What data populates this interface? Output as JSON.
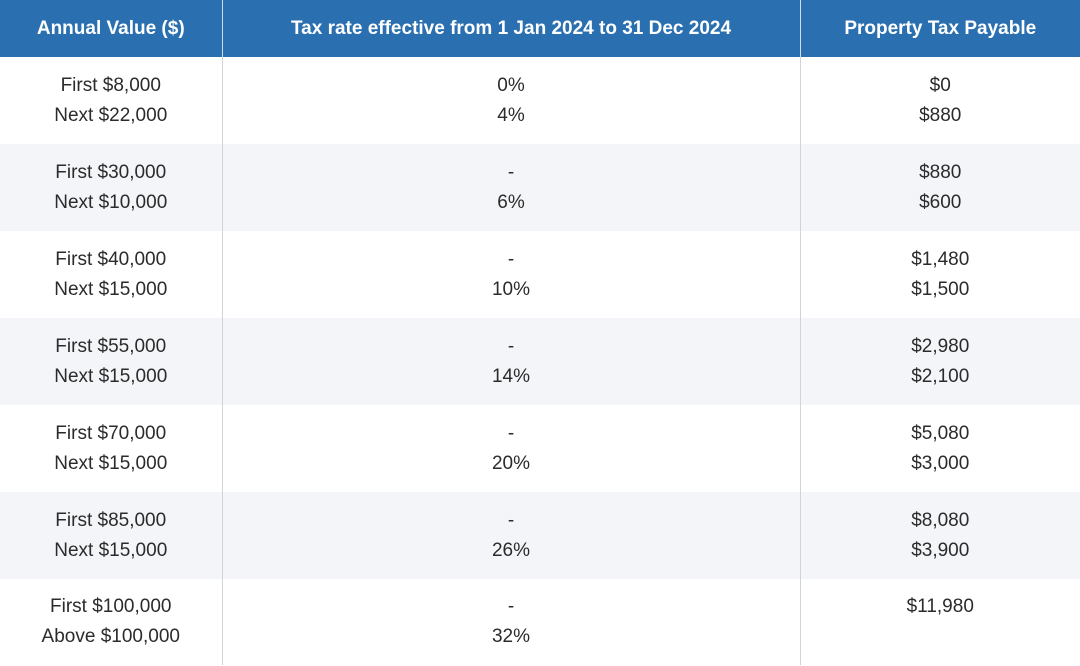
{
  "table": {
    "headers": [
      "Annual Value ($)",
      "Tax rate effective from 1 Jan 2024 to 31 Dec 2024",
      "Property Tax Payable"
    ],
    "rows": [
      {
        "annual_value": [
          "First $8,000",
          "Next $22,000"
        ],
        "tax_rate": [
          "0%",
          "4%"
        ],
        "tax_payable": [
          "$0",
          "$880"
        ]
      },
      {
        "annual_value": [
          "First $30,000",
          "Next $10,000"
        ],
        "tax_rate": [
          "-",
          "6%"
        ],
        "tax_payable": [
          "$880",
          "$600"
        ]
      },
      {
        "annual_value": [
          "First $40,000",
          "Next $15,000"
        ],
        "tax_rate": [
          "-",
          "10%"
        ],
        "tax_payable": [
          "$1,480",
          "$1,500"
        ]
      },
      {
        "annual_value": [
          "First $55,000",
          "Next $15,000"
        ],
        "tax_rate": [
          "-",
          "14%"
        ],
        "tax_payable": [
          "$2,980",
          "$2,100"
        ]
      },
      {
        "annual_value": [
          "First $70,000",
          "Next $15,000"
        ],
        "tax_rate": [
          "-",
          "20%"
        ],
        "tax_payable": [
          "$5,080",
          "$3,000"
        ]
      },
      {
        "annual_value": [
          "First $85,000",
          "Next $15,000"
        ],
        "tax_rate": [
          "-",
          "26%"
        ],
        "tax_payable": [
          "$8,080",
          "$3,900"
        ]
      },
      {
        "annual_value": [
          "First $100,000",
          "Above $100,000"
        ],
        "tax_rate": [
          "-",
          "32%"
        ],
        "tax_payable": [
          "$11,980",
          ""
        ]
      }
    ]
  }
}
